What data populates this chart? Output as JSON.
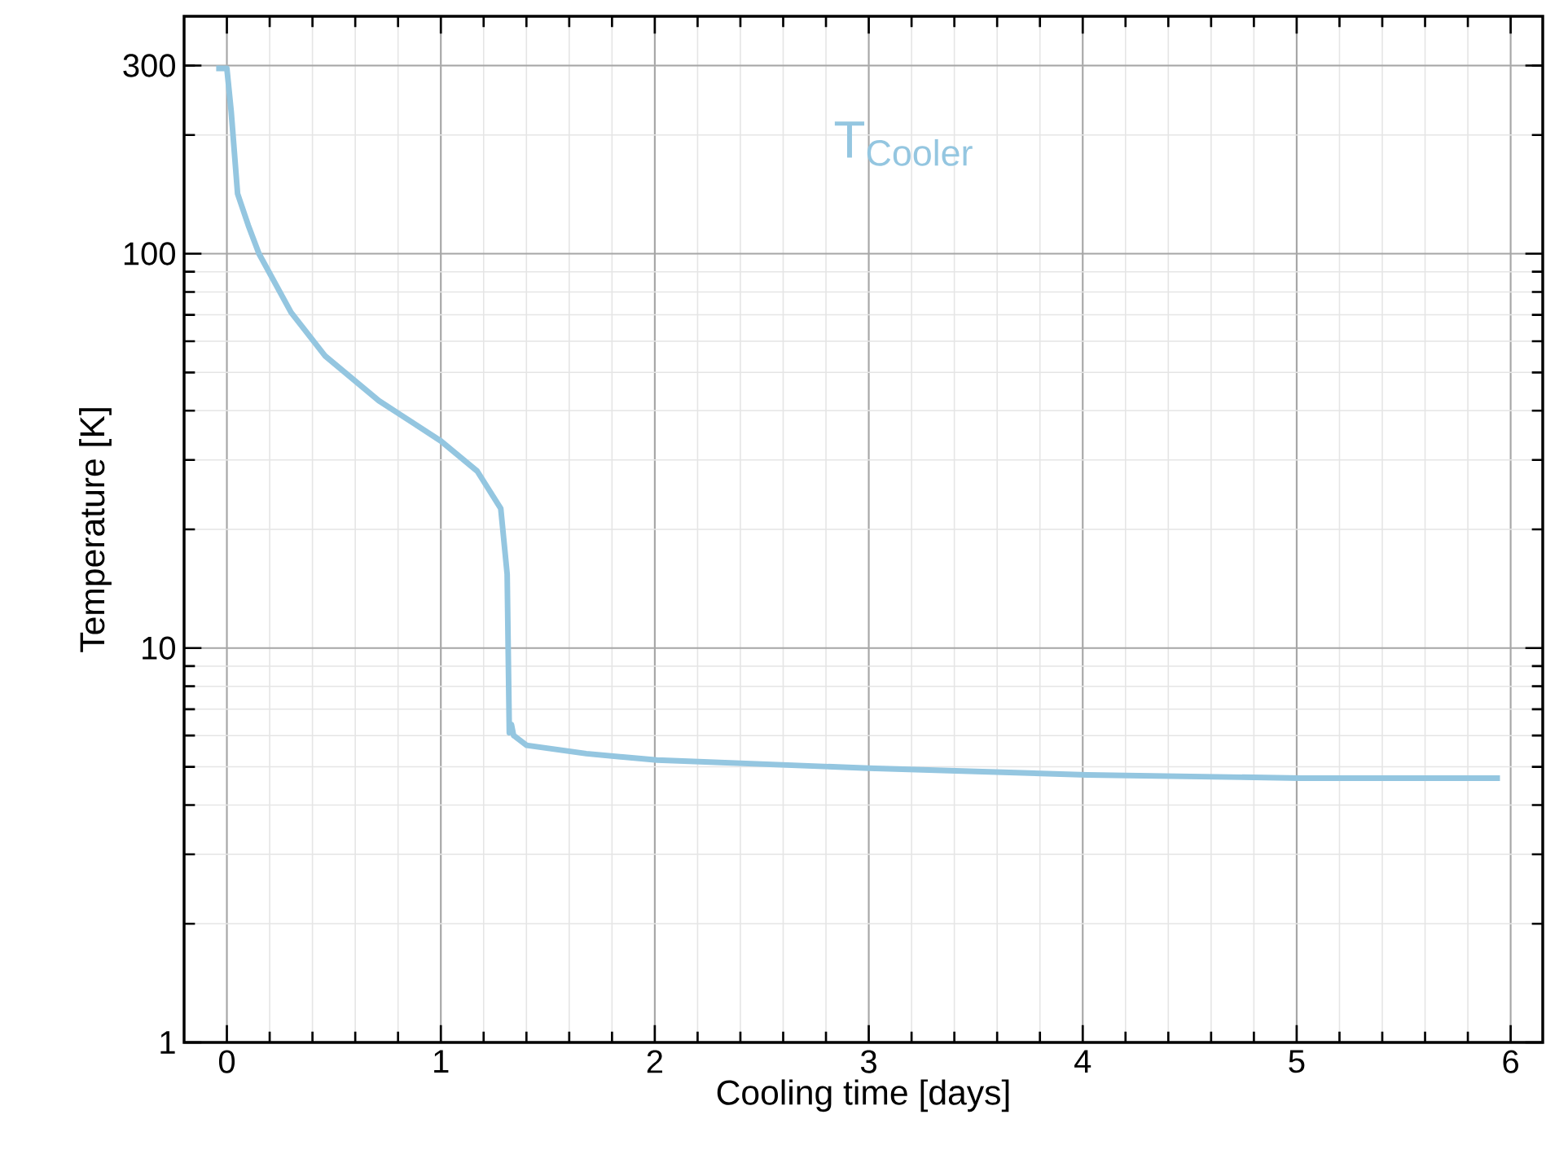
{
  "chart_data": {
    "type": "line",
    "xlabel": "Cooling time [days]",
    "ylabel": "Temperature [K]",
    "xlim": [
      -0.2,
      6.15
    ],
    "ylim": [
      1,
      400
    ],
    "log": "y",
    "grid": true,
    "xticks": [
      0,
      1,
      2,
      3,
      4,
      5,
      6
    ],
    "yticks": [
      1,
      10,
      100,
      300
    ],
    "x": [
      -0.05,
      0,
      0.02,
      0.05,
      0.1,
      0.15,
      0.3,
      0.46,
      0.71,
      1.0,
      1.17,
      1.28,
      1.31,
      1.32,
      1.33,
      1.34,
      1.35,
      1.4,
      1.68,
      2.01,
      3.0,
      4.02,
      5.02,
      5.95
    ],
    "series": [
      {
        "name": "T$_{Cooler}$",
        "color": "#94c6e0",
        "values": [
          295,
          295,
          230,
          142,
          118,
          100,
          71,
          55,
          42.4,
          33.5,
          28.1,
          22.6,
          15.4,
          6.1,
          6.4,
          6.0,
          5.95,
          5.67,
          5.4,
          5.2,
          4.96,
          4.77,
          4.68,
          4.68
        ]
      }
    ]
  }
}
